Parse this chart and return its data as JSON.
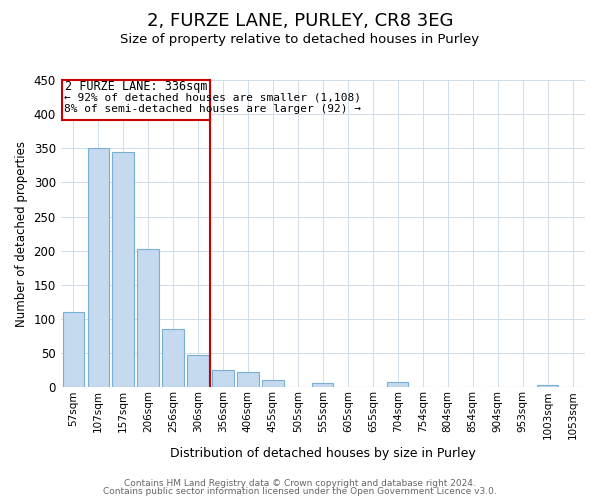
{
  "title": "2, FURZE LANE, PURLEY, CR8 3EG",
  "subtitle": "Size of property relative to detached houses in Purley",
  "xlabel": "Distribution of detached houses by size in Purley",
  "ylabel": "Number of detached properties",
  "bar_labels": [
    "57sqm",
    "107sqm",
    "157sqm",
    "206sqm",
    "256sqm",
    "306sqm",
    "356sqm",
    "406sqm",
    "455sqm",
    "505sqm",
    "555sqm",
    "605sqm",
    "655sqm",
    "704sqm",
    "754sqm",
    "804sqm",
    "854sqm",
    "904sqm",
    "953sqm",
    "1003sqm",
    "1053sqm"
  ],
  "bar_values": [
    110,
    350,
    345,
    203,
    85,
    47,
    25,
    23,
    11,
    0,
    6,
    0,
    0,
    7,
    0,
    0,
    0,
    0,
    0,
    3,
    0
  ],
  "bar_color": "#c5d9ef",
  "bar_edge_color": "#7aafd4",
  "vline_x": 5.5,
  "vline_color": "#cc0000",
  "annotation_title": "2 FURZE LANE: 336sqm",
  "annotation_line1": "← 92% of detached houses are smaller (1,108)",
  "annotation_line2": "8% of semi-detached houses are larger (92) →",
  "box_color": "#cc0000",
  "ylim": [
    0,
    450
  ],
  "yticks": [
    0,
    50,
    100,
    150,
    200,
    250,
    300,
    350,
    400,
    450
  ],
  "footer1": "Contains HM Land Registry data © Crown copyright and database right 2024.",
  "footer2": "Contains public sector information licensed under the Open Government Licence v3.0.",
  "bg_color": "#ffffff",
  "grid_color": "#d0dce8"
}
